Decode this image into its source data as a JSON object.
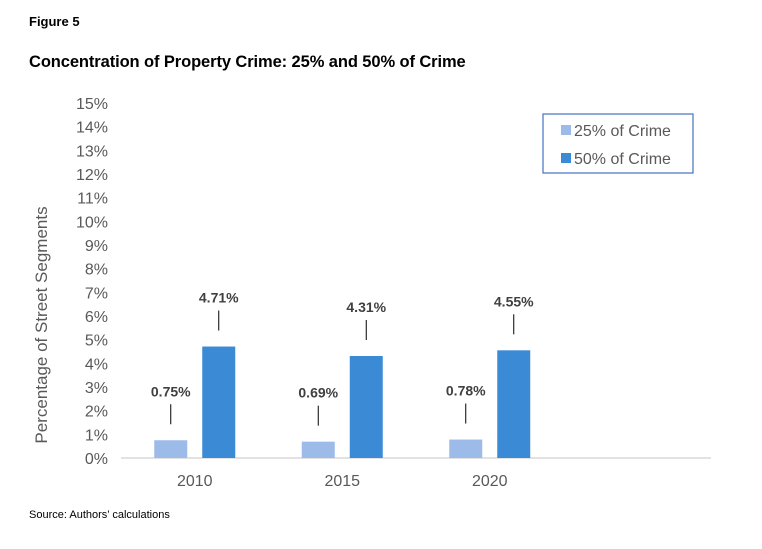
{
  "figure_label": "Figure 5",
  "source": "Source: Authors’ calculations",
  "chart_data": {
    "type": "bar",
    "title": "Concentration of Property Crime: 25% and 50% of Crime",
    "xlabel": "",
    "ylabel": "Percentage of Street Segments",
    "categories": [
      "2010",
      "2015",
      "2020",
      ""
    ],
    "series": [
      {
        "name": "25% of Crime",
        "color": "#9dbbe8",
        "values": [
          0.75,
          0.69,
          0.78,
          null
        ],
        "labels": [
          "0.75%",
          "0.69%",
          "0.78%",
          ""
        ]
      },
      {
        "name": "50% of Crime",
        "color": "#3a8ad6",
        "values": [
          4.71,
          4.31,
          4.55,
          null
        ],
        "labels": [
          "4.71%",
          "4.31%",
          "4.55%",
          ""
        ]
      }
    ],
    "ylim": [
      0,
      15
    ],
    "yticks": [
      "0%",
      "1%",
      "2%",
      "3%",
      "4%",
      "5%",
      "6%",
      "7%",
      "8%",
      "9%",
      "10%",
      "11%",
      "12%",
      "13%",
      "14%",
      "15%"
    ],
    "grid": false,
    "legend_position": "top-right",
    "legend_border_color": "#4472c4"
  }
}
